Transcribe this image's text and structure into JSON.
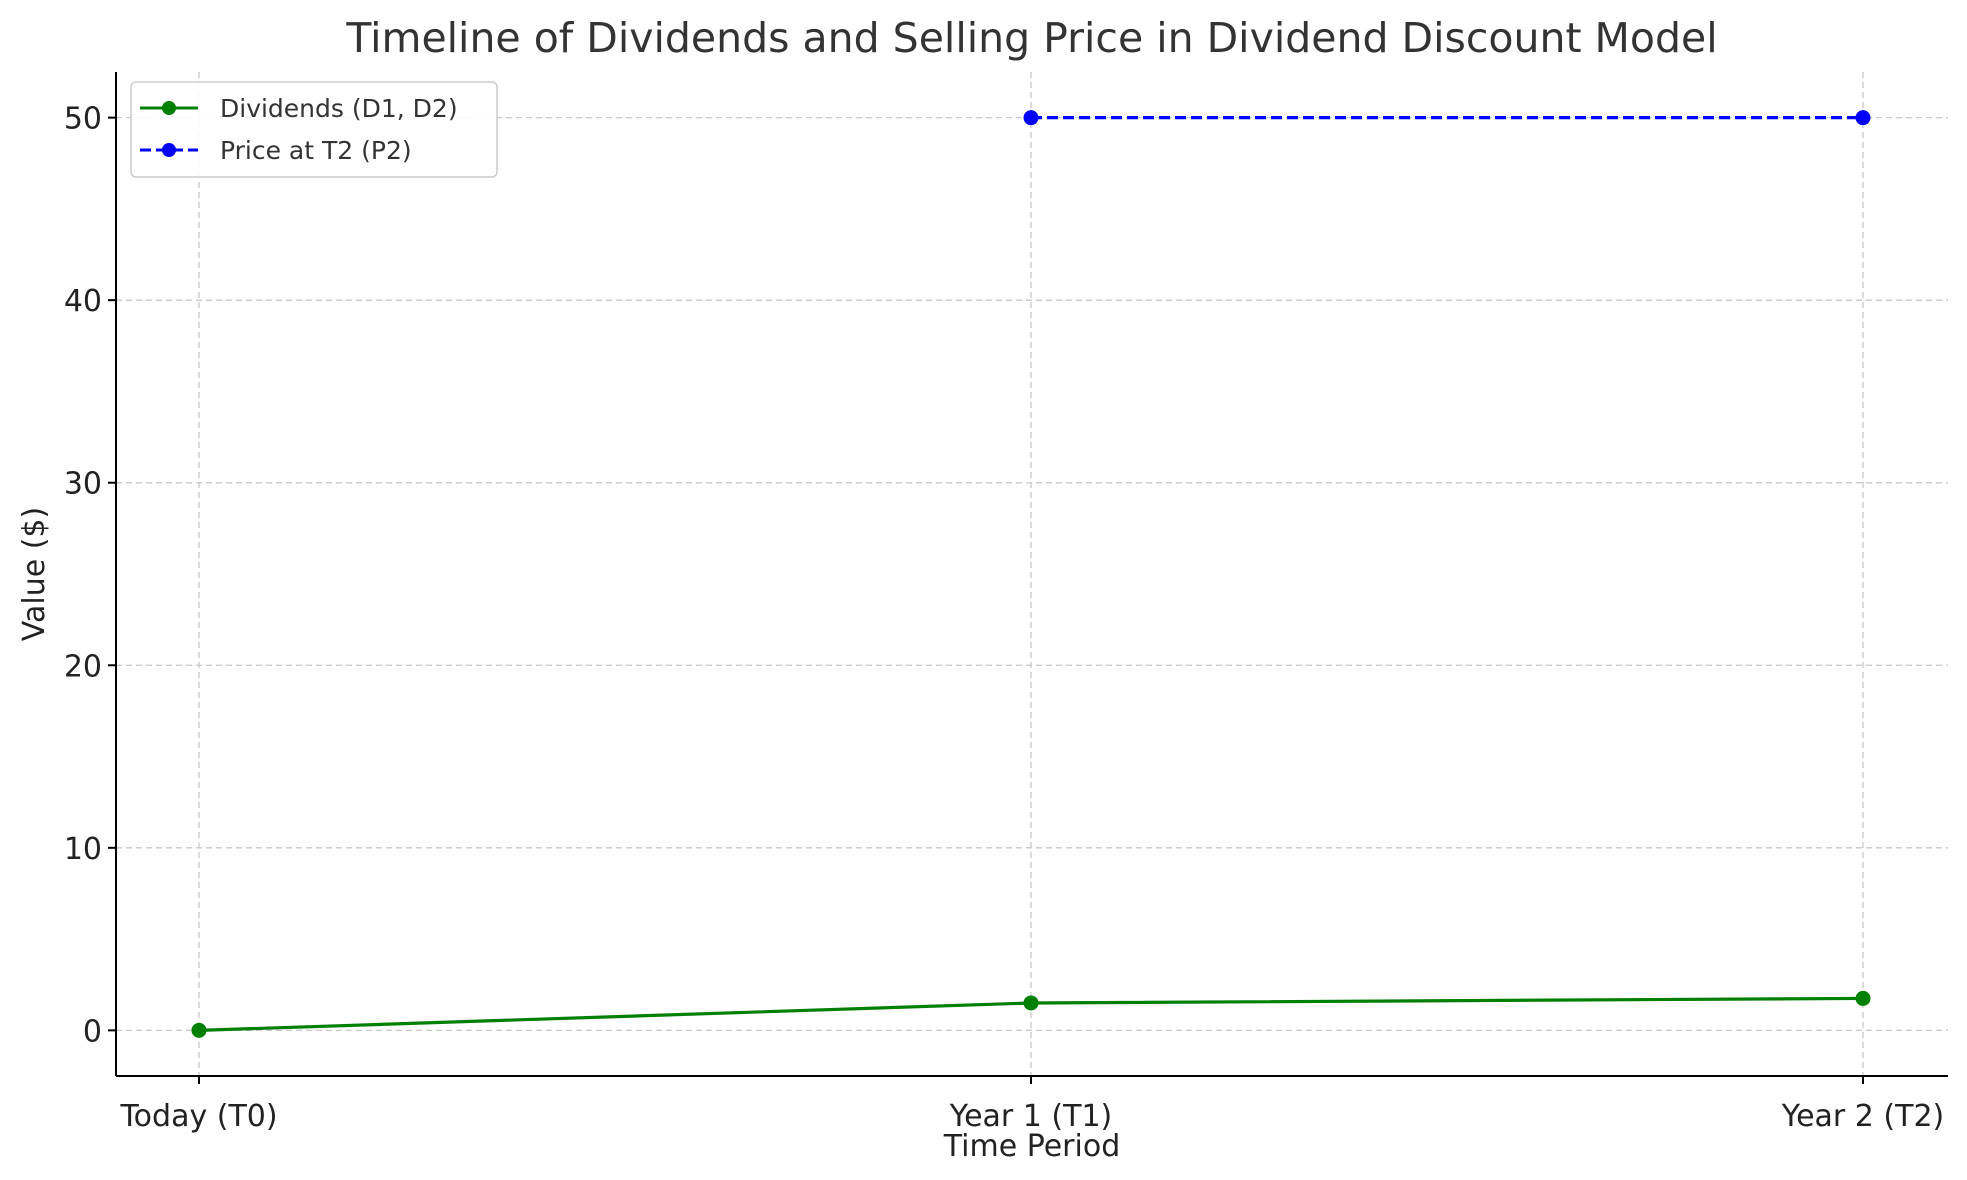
{
  "chart_data": {
    "type": "line",
    "title": "Timeline of Dividends and Selling Price in Dividend Discount Model",
    "xlabel": "Time Period",
    "ylabel": "Value ($)",
    "categories": [
      "Today (T0)",
      "Year 1 (T1)",
      "Year 2 (T2)"
    ],
    "ylim": [
      -2.5,
      52.5
    ],
    "yticks": [
      0,
      10,
      20,
      30,
      40,
      50
    ],
    "grid": true,
    "legend_position": "top-left",
    "series": [
      {
        "name": "Dividends (D1, D2)",
        "color": "#008000",
        "line_style": "solid",
        "marker": "circle",
        "points": [
          {
            "x": "Today (T0)",
            "y": 0
          },
          {
            "x": "Year 1 (T1)",
            "y": 1.5
          },
          {
            "x": "Year 2 (T2)",
            "y": 1.75
          }
        ]
      },
      {
        "name": "Price at T2 (P2)",
        "color": "#0000ff",
        "line_style": "dashed",
        "marker": "circle",
        "points": [
          {
            "x": "Year 1 (T1)",
            "y": 50
          },
          {
            "x": "Year 2 (T2)",
            "y": 50
          }
        ]
      }
    ]
  }
}
